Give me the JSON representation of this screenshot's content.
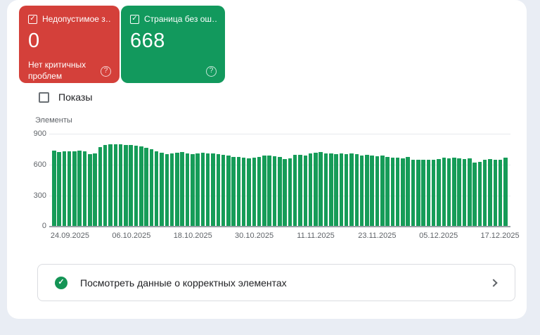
{
  "cards": {
    "error_card": {
      "label": "Недопустимое з…",
      "value": "0",
      "description": "Нет критичных проблем",
      "color": "#d4403a",
      "checkbox_checked": true,
      "help_icon": "?"
    },
    "valid_card": {
      "label": "Страница без ош…",
      "value": "668",
      "color": "#12995d",
      "checkbox_checked": true,
      "help_icon": "?"
    }
  },
  "impressions_toggle": {
    "label": "Показы",
    "checked": false
  },
  "chart_data": {
    "type": "bar",
    "title": "",
    "ylabel": "Элементы",
    "bar_color": "#169c58",
    "grid": true,
    "ylim": [
      0,
      900
    ],
    "y_tick_labels": [
      "900",
      "600",
      "300",
      "0"
    ],
    "x_tick_labels": [
      "24.09.2025",
      "06.10.2025",
      "18.10.2025",
      "30.10.2025",
      "11.11.2025",
      "23.11.2025",
      "05.12.2025",
      "17.12.2025"
    ],
    "x_tick_indices": [
      3,
      15,
      27,
      39,
      51,
      63,
      75,
      87
    ],
    "granularity": "daily",
    "values": [
      735,
      722,
      730,
      733,
      728,
      736,
      730,
      705,
      712,
      768,
      788,
      797,
      800,
      798,
      793,
      790,
      786,
      778,
      763,
      748,
      732,
      715,
      706,
      712,
      718,
      720,
      712,
      703,
      710,
      713,
      708,
      712,
      706,
      695,
      686,
      678,
      672,
      668,
      664,
      670,
      678,
      690,
      686,
      681,
      673,
      658,
      663,
      693,
      698,
      692,
      710,
      715,
      722,
      712,
      710,
      706,
      712,
      704,
      710,
      700,
      688,
      699,
      692,
      685,
      690,
      676,
      670,
      668,
      662,
      672,
      648,
      650,
      646,
      649,
      645,
      652,
      668,
      664,
      667,
      660,
      652,
      661,
      620,
      628,
      645,
      652,
      650,
      648,
      666
    ]
  },
  "action_bar": {
    "label": "Посмотреть данные о корректных элементах",
    "icon_color": "#149455",
    "check_glyph": "✓"
  }
}
